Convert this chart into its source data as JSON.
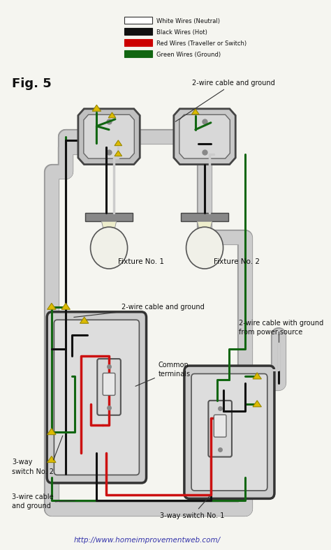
{
  "bg_color": "#f5f5f0",
  "legend": [
    {
      "label": "White Wires (Neutral)",
      "color": "#ffffff",
      "ec": "#333333"
    },
    {
      "label": "Black Wires (Hot)",
      "color": "#111111",
      "ec": "#111111"
    },
    {
      "label": "Red Wires (Traveller or Switch)",
      "color": "#cc0000",
      "ec": "#cc0000"
    },
    {
      "label": "Green Wires (Ground)",
      "color": "#116611",
      "ec": "#116611"
    }
  ],
  "fig_label": "Fig. 5",
  "url": "http://www.homeimprovementweb.com/",
  "colors": {
    "white": "#f5f5f5",
    "black": "#111111",
    "red": "#cc1111",
    "green": "#116611",
    "yellow": "#ddbb00",
    "gray_light": "#cccccc",
    "gray_mid": "#aaaaaa",
    "gray_dark": "#777777",
    "conduit": "#bbbbbb",
    "box_fill": "#c8c8c8",
    "box_edge": "#444444"
  }
}
